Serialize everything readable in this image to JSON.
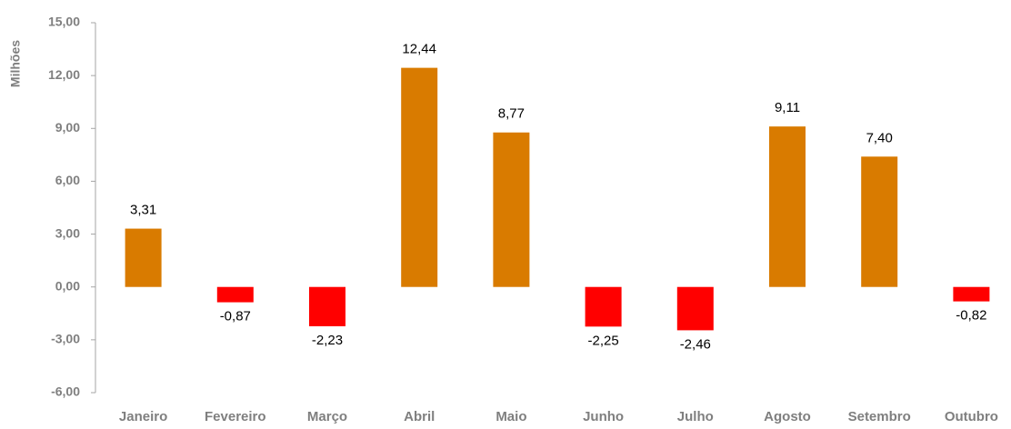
{
  "chart_data": {
    "type": "bar",
    "y_label": "Milhões",
    "categories": [
      "Janeiro",
      "Fevereiro",
      "Março",
      "Abril",
      "Maio",
      "Junho",
      "Julho",
      "Agosto",
      "Setembro",
      "Outubro"
    ],
    "values": [
      3.31,
      -0.87,
      -2.23,
      12.44,
      8.77,
      -2.25,
      -2.46,
      9.11,
      7.4,
      -0.82
    ],
    "value_labels": [
      "3,31",
      "-0,87",
      "-2,23",
      "12,44",
      "8,77",
      "-2,25",
      "-2,46",
      "9,11",
      "7,40",
      "-0,82"
    ],
    "positive_color": "#d97b00",
    "negative_color": "#ff0000",
    "ylim": [
      -6,
      15
    ],
    "yticks": [
      {
        "value": -6,
        "label": "-6,00"
      },
      {
        "value": -3,
        "label": "-3,00"
      },
      {
        "value": 0,
        "label": "0,00"
      },
      {
        "value": 3,
        "label": "3,00"
      },
      {
        "value": 6,
        "label": "6,00"
      },
      {
        "value": 9,
        "label": "9,00"
      },
      {
        "value": 12,
        "label": "12,00"
      },
      {
        "value": 15,
        "label": "15,00"
      }
    ],
    "grid": false
  }
}
